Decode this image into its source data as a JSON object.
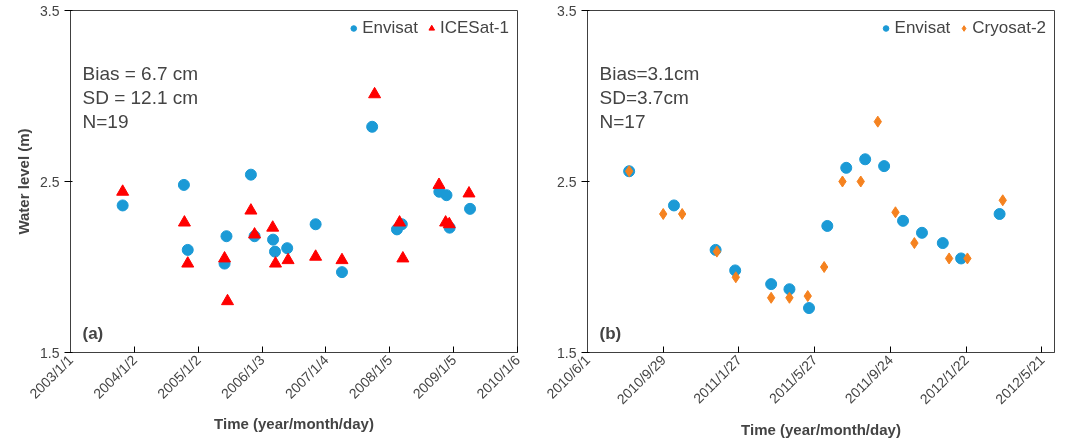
{
  "chart_data": [
    {
      "type": "scatter",
      "xlabel": "Time (year/month/day)",
      "ylabel": "Water level (m)",
      "ylim": [
        1.5,
        3.5
      ],
      "yticks": [
        1.5,
        2.5,
        3.5
      ],
      "xlim": [
        "2003-01-01",
        "2010-01-06"
      ],
      "xticks": [
        {
          "value": "2003-01-01",
          "label": "2003/1/1"
        },
        {
          "value": "2004-01-02",
          "label": "2004/1/2"
        },
        {
          "value": "2005-01-02",
          "label": "2005/1/2"
        },
        {
          "value": "2006-01-03",
          "label": "2006/1/3"
        },
        {
          "value": "2007-01-04",
          "label": "2007/1/4"
        },
        {
          "value": "2008-01-05",
          "label": "2008/1/5"
        },
        {
          "value": "2009-01-05",
          "label": "2009/1/5"
        },
        {
          "value": "2010-01-06",
          "label": "2010/1/6"
        }
      ],
      "grid": false,
      "legend": "top right",
      "annotations": [
        "Bias = 6.7 cm",
        "SD = 12.1 cm",
        "N=19",
        "(a)"
      ],
      "series": [
        {
          "name": "Envisat",
          "color": "#1b9ad6",
          "marker": "circle",
          "x": [
            "2003-10-27",
            "2004-10-12",
            "2004-11-03",
            "2005-06-13",
            "2005-06-02",
            "2005-10-31",
            "2005-11-21",
            "2006-03-07",
            "2006-03-18",
            "2006-05-27",
            "2006-11-06",
            "2007-04-06",
            "2007-09-26",
            "2008-02-15",
            "2008-03-14",
            "2008-10-15",
            "2008-11-25",
            "2008-12-13",
            "2009-04-09"
          ],
          "values": [
            2.36,
            2.48,
            2.1,
            2.18,
            2.02,
            2.54,
            2.18,
            2.16,
            2.09,
            2.11,
            2.25,
            1.97,
            2.82,
            2.22,
            2.25,
            2.44,
            2.42,
            2.23,
            2.34
          ]
        },
        {
          "name": "ICESat-1",
          "color": "#ff0000",
          "marker": "triangle",
          "x": [
            "2003-10-27",
            "2004-10-15",
            "2004-11-03",
            "2005-06-02",
            "2005-06-19",
            "2005-10-31",
            "2005-11-21",
            "2006-03-05",
            "2006-03-21",
            "2006-06-01",
            "2006-11-06",
            "2007-04-06",
            "2007-10-10",
            "2008-03-01",
            "2008-03-20",
            "2008-10-13",
            "2008-11-20",
            "2008-12-11",
            "2009-04-03"
          ],
          "values": [
            2.44,
            2.26,
            2.02,
            2.05,
            1.8,
            2.33,
            2.19,
            2.23,
            2.02,
            2.04,
            2.06,
            2.04,
            3.01,
            2.26,
            2.05,
            2.48,
            2.26,
            2.25,
            2.43
          ]
        }
      ]
    },
    {
      "type": "scatter",
      "xlabel": "Time (year/month/day)",
      "ylim": [
        1.5,
        3.5
      ],
      "yticks": [
        1.5,
        2.5,
        3.5
      ],
      "xlim": [
        "2010-06-01",
        "2012-06-10"
      ],
      "xticks": [
        {
          "value": "2010-06-01",
          "label": "2010/6/1"
        },
        {
          "value": "2010-09-29",
          "label": "2010/9/29"
        },
        {
          "value": "2011-01-27",
          "label": "2011/1/27"
        },
        {
          "value": "2011-05-27",
          "label": "2011/5/27"
        },
        {
          "value": "2011-09-24",
          "label": "2011/9/24"
        },
        {
          "value": "2012-01-22",
          "label": "2012/1/22"
        },
        {
          "value": "2012-05-21",
          "label": "2012/5/21"
        }
      ],
      "grid": false,
      "legend": "top right",
      "annotations": [
        "Bias=3.1cm",
        "SD=3.7cm",
        "N=17",
        "(b)"
      ],
      "series": [
        {
          "name": "Envisat",
          "color": "#1b9ad6",
          "marker": "circle",
          "x": [
            "2010-08-06",
            "2010-10-16",
            "2010-12-21",
            "2011-01-21",
            "2011-03-19",
            "2011-04-17",
            "2011-05-18",
            "2011-06-16",
            "2011-07-16",
            "2011-08-15",
            "2011-09-14",
            "2011-10-14",
            "2011-11-13",
            "2011-12-16",
            "2012-01-14",
            "2012-03-15"
          ],
          "values": [
            2.56,
            2.36,
            2.1,
            1.98,
            1.9,
            1.87,
            1.76,
            2.24,
            2.58,
            2.63,
            2.59,
            2.27,
            2.2,
            2.14,
            2.05,
            2.31
          ]
        },
        {
          "name": "Cryosat-2",
          "color": "#f5821f",
          "marker": "diamond",
          "x": [
            "2010-08-06",
            "2010-09-29",
            "2010-10-29",
            "2010-12-23",
            "2011-01-22",
            "2011-03-19",
            "2011-04-17",
            "2011-05-16",
            "2011-06-11",
            "2011-07-10",
            "2011-08-08",
            "2011-09-04",
            "2011-10-02",
            "2011-11-01",
            "2011-12-26",
            "2012-01-24",
            "2012-03-20"
          ],
          "values": [
            2.56,
            2.31,
            2.31,
            2.09,
            1.94,
            1.82,
            1.82,
            1.83,
            2.0,
            2.5,
            2.5,
            2.85,
            2.32,
            2.14,
            2.05,
            2.05,
            2.39
          ]
        }
      ]
    }
  ]
}
